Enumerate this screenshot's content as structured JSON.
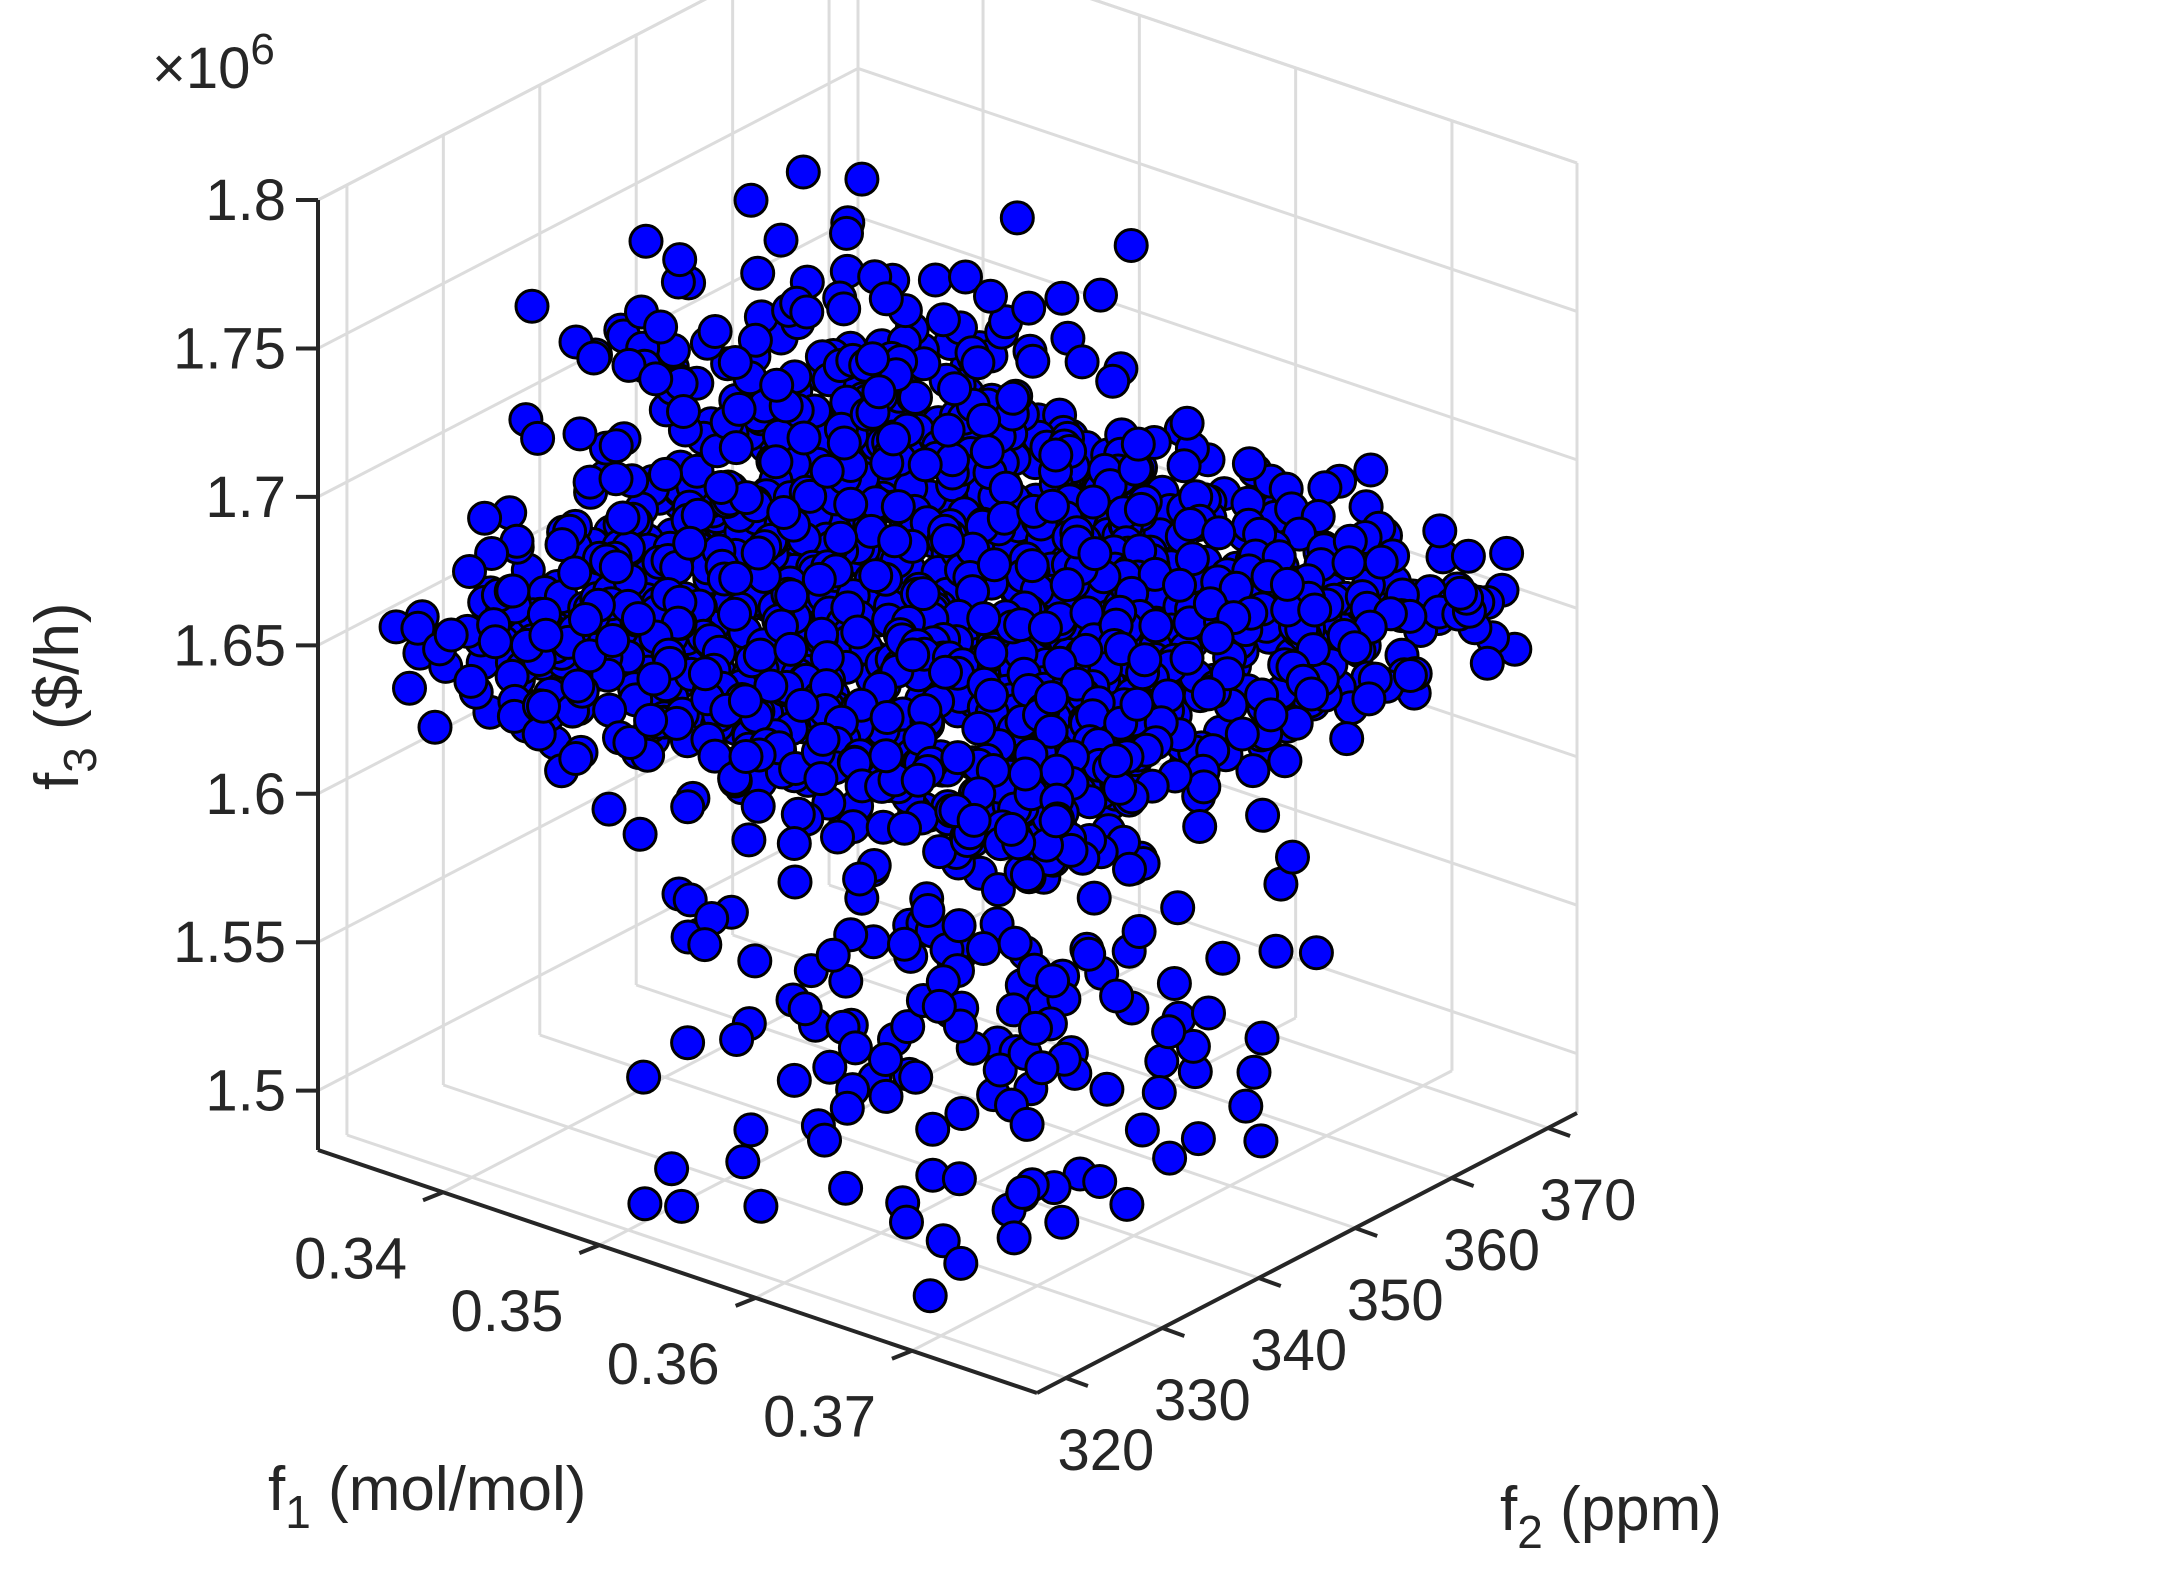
{
  "chart_data": {
    "type": "scatter",
    "title": "",
    "xlabel_main": "f",
    "xlabel_sub": "1",
    "xlabel_unit": " (mol/mol)",
    "ylabel_main": "f",
    "ylabel_sub": "2",
    "ylabel_unit": " (ppm)",
    "zlabel_main": "f",
    "zlabel_sub": "3",
    "zlabel_unit": " ($/h)",
    "z_exponent_base": "×10",
    "z_exponent_power": "6",
    "x_ticks": [
      "0.34",
      "0.35",
      "0.36",
      "0.37"
    ],
    "y_ticks": [
      "320",
      "330",
      "340",
      "350",
      "360",
      "370"
    ],
    "z_ticks": [
      "1.5",
      "1.55",
      "1.6",
      "1.65",
      "1.7",
      "1.75",
      "1.8"
    ],
    "x_range": [
      0.332,
      0.378
    ],
    "y_range": [
      317,
      373
    ],
    "z_range": [
      1.48,
      1.8
    ],
    "z_scale": 1000000,
    "grid": true,
    "marker_face_color": "#0000ff",
    "marker_edge_color": "#000000",
    "cluster_ranges": {
      "x": [
        0.335,
        0.376
      ],
      "y": [
        318,
        371
      ],
      "z": [
        1.49,
        1.75
      ]
    }
  }
}
